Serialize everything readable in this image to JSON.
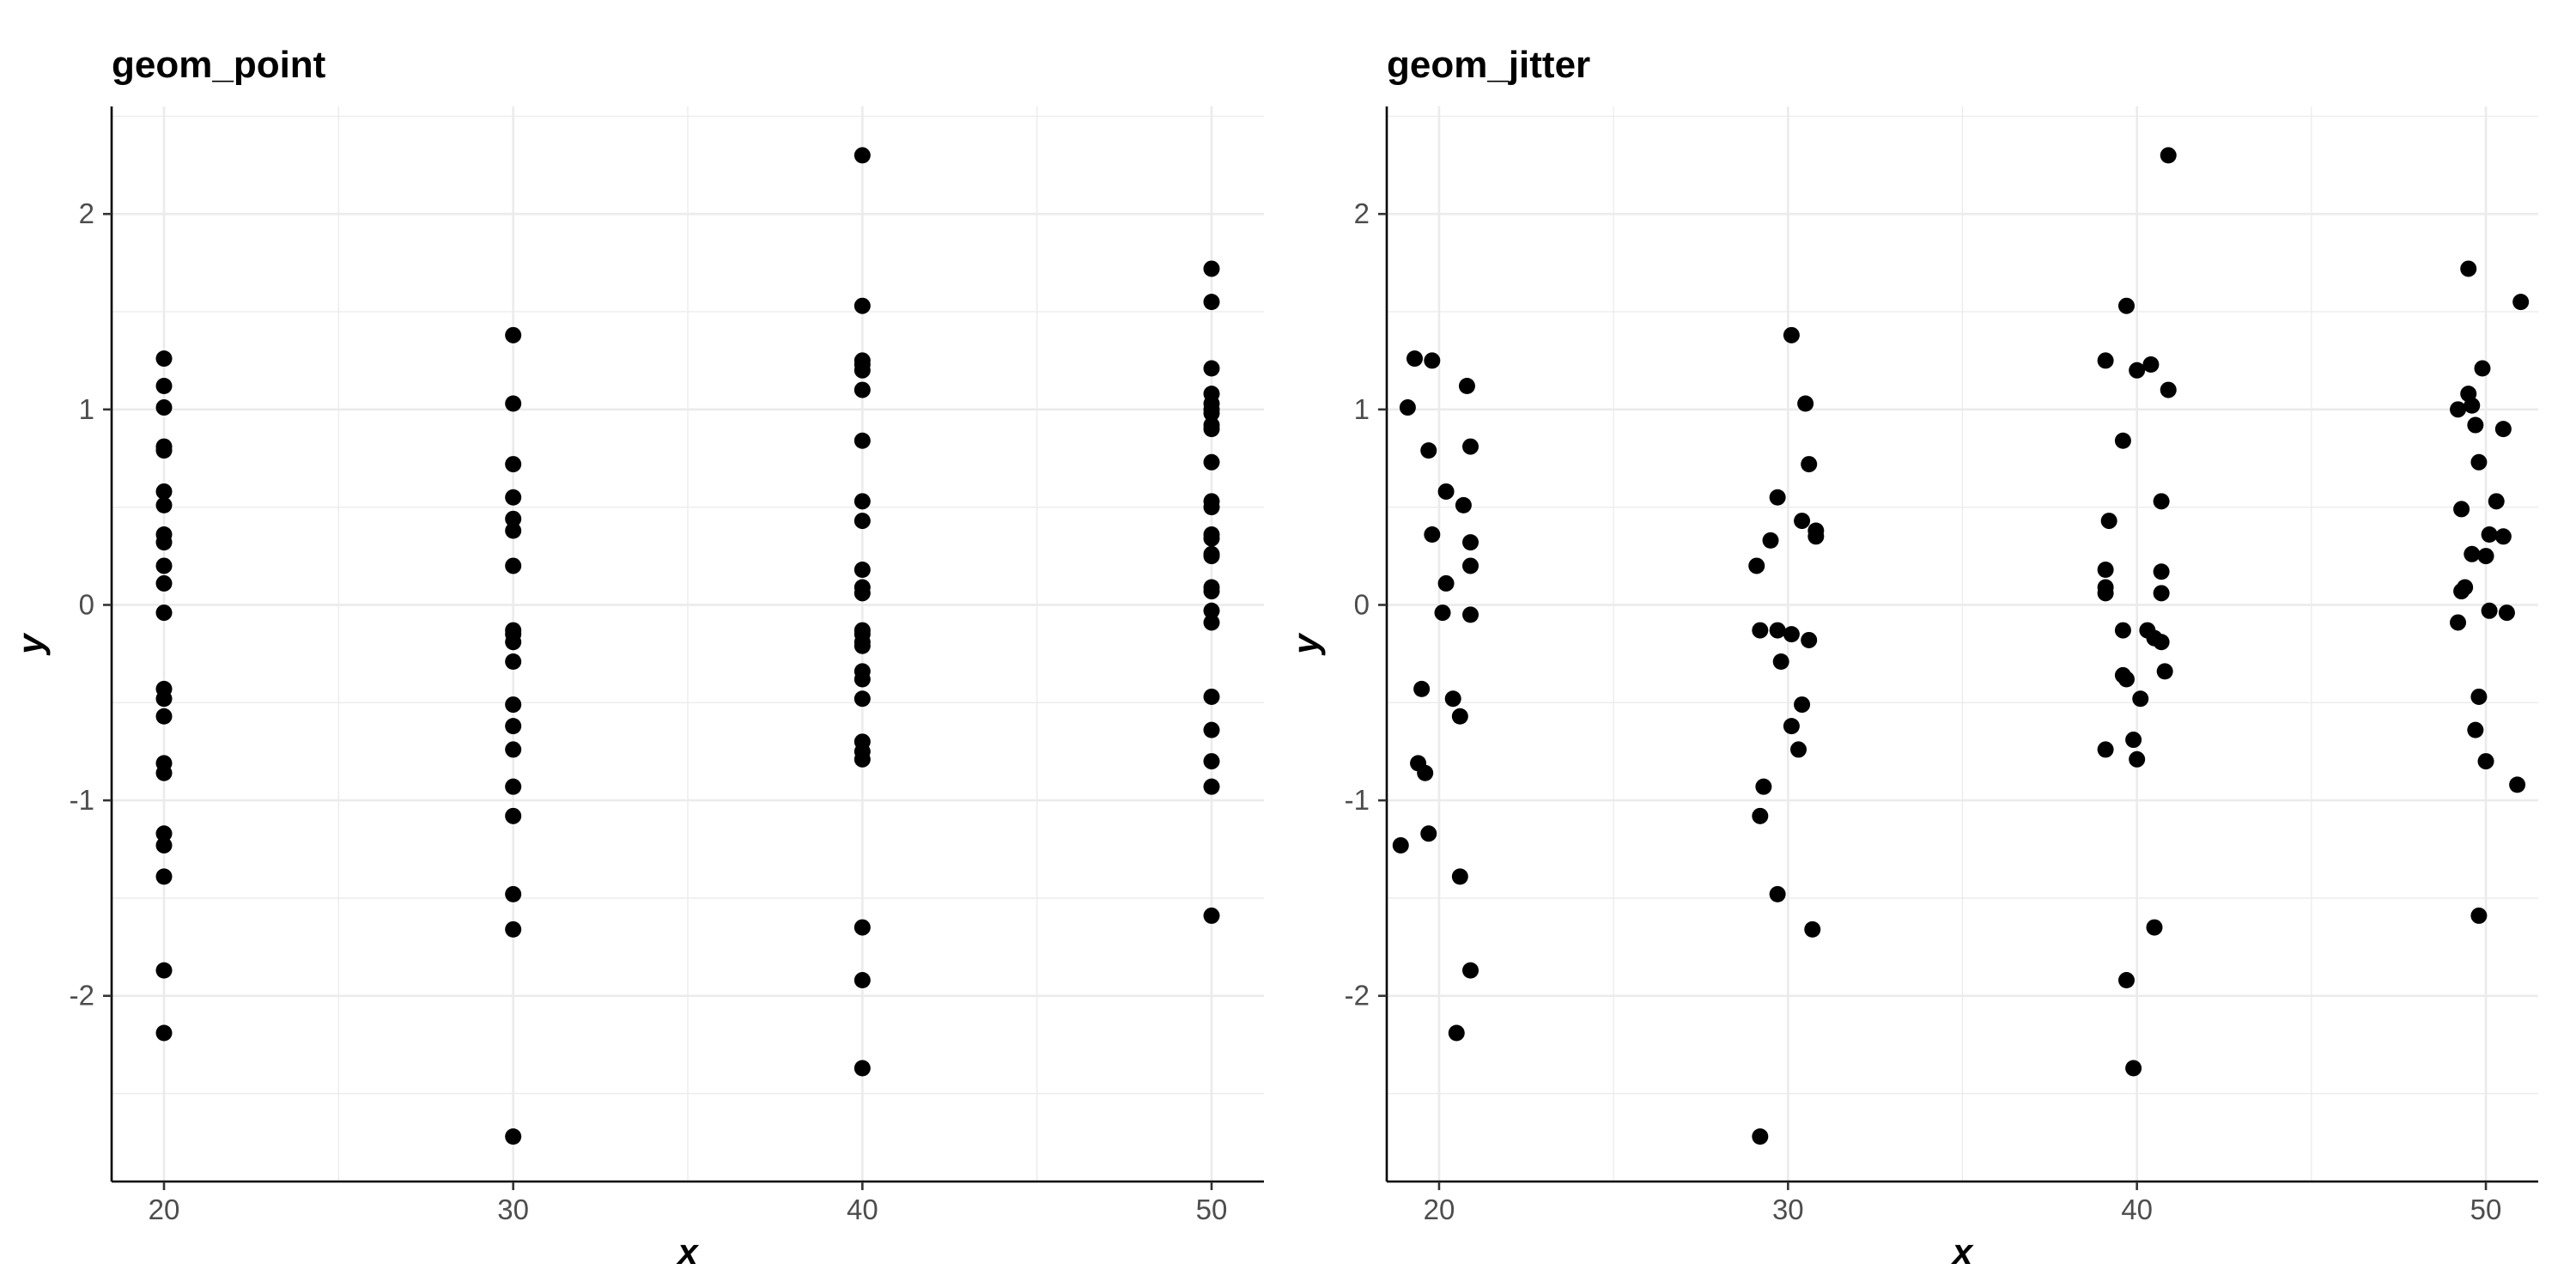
{
  "chart_data": [
    {
      "type": "scatter",
      "title": "geom_point",
      "xlabel": "x",
      "ylabel": "y",
      "xlim": [
        18.5,
        51.5
      ],
      "ylim": [
        -2.95,
        2.55
      ],
      "x_ticks": [
        "20",
        "30",
        "40",
        "50"
      ],
      "y_ticks": [
        "-2",
        "-1",
        "0",
        "1",
        "2"
      ],
      "grid": true,
      "points": [
        [
          20,
          1.26
        ],
        [
          20,
          1.12
        ],
        [
          20,
          1.01
        ],
        [
          20,
          0.81
        ],
        [
          20,
          0.79
        ],
        [
          20,
          0.58
        ],
        [
          20,
          0.51
        ],
        [
          20,
          0.36
        ],
        [
          20,
          0.32
        ],
        [
          20,
          0.2
        ],
        [
          20,
          0.11
        ],
        [
          20,
          -0.04
        ],
        [
          20,
          -0.43
        ],
        [
          20,
          -0.48
        ],
        [
          20,
          -0.57
        ],
        [
          20,
          -0.81
        ],
        [
          20,
          -0.86
        ],
        [
          20,
          -1.17
        ],
        [
          20,
          -1.23
        ],
        [
          20,
          -1.39
        ],
        [
          20,
          -1.87
        ],
        [
          20,
          -2.19
        ],
        [
          30,
          1.38
        ],
        [
          30,
          1.03
        ],
        [
          30,
          0.72
        ],
        [
          30,
          0.55
        ],
        [
          30,
          0.44
        ],
        [
          30,
          0.38
        ],
        [
          30,
          0.2
        ],
        [
          30,
          -0.13
        ],
        [
          30,
          -0.15
        ],
        [
          30,
          -0.19
        ],
        [
          30,
          -0.29
        ],
        [
          30,
          -0.51
        ],
        [
          30,
          -0.62
        ],
        [
          30,
          -0.74
        ],
        [
          30,
          -0.93
        ],
        [
          30,
          -1.08
        ],
        [
          30,
          -1.48
        ],
        [
          30,
          -1.66
        ],
        [
          30,
          -2.72
        ],
        [
          40,
          2.3
        ],
        [
          40,
          1.53
        ],
        [
          40,
          1.25
        ],
        [
          40,
          1.23
        ],
        [
          40,
          1.2
        ],
        [
          40,
          1.1
        ],
        [
          40,
          0.84
        ],
        [
          40,
          0.53
        ],
        [
          40,
          0.43
        ],
        [
          40,
          0.18
        ],
        [
          40,
          0.09
        ],
        [
          40,
          0.06
        ],
        [
          40,
          -0.13
        ],
        [
          40,
          -0.15
        ],
        [
          40,
          -0.19
        ],
        [
          40,
          -0.21
        ],
        [
          40,
          -0.34
        ],
        [
          40,
          -0.38
        ],
        [
          40,
          -0.48
        ],
        [
          40,
          -0.7
        ],
        [
          40,
          -0.75
        ],
        [
          40,
          -0.79
        ],
        [
          40,
          -1.65
        ],
        [
          40,
          -1.92
        ],
        [
          40,
          -2.37
        ],
        [
          50,
          1.72
        ],
        [
          50,
          1.55
        ],
        [
          50,
          1.21
        ],
        [
          50,
          1.08
        ],
        [
          50,
          1.03
        ],
        [
          50,
          1.0
        ],
        [
          50,
          0.98
        ],
        [
          50,
          0.92
        ],
        [
          50,
          0.9
        ],
        [
          50,
          0.73
        ],
        [
          50,
          0.53
        ],
        [
          50,
          0.5
        ],
        [
          50,
          0.36
        ],
        [
          50,
          0.34
        ],
        [
          50,
          0.26
        ],
        [
          50,
          0.25
        ],
        [
          50,
          0.09
        ],
        [
          50,
          0.07
        ],
        [
          50,
          -0.03
        ],
        [
          50,
          -0.09
        ],
        [
          50,
          -0.47
        ],
        [
          50,
          -0.64
        ],
        [
          50,
          -0.8
        ],
        [
          50,
          -0.93
        ],
        [
          50,
          -1.59
        ]
      ]
    },
    {
      "type": "scatter",
      "title": "geom_jitter",
      "xlabel": "x",
      "ylabel": "y",
      "xlim": [
        18.5,
        51.5
      ],
      "ylim": [
        -2.95,
        2.55
      ],
      "x_ticks": [
        "20",
        "30",
        "40",
        "50"
      ],
      "y_ticks": [
        "-2",
        "-1",
        "0",
        "1",
        "2"
      ],
      "grid": true,
      "points": [
        [
          19.3,
          1.26
        ],
        [
          19.8,
          1.25
        ],
        [
          20.8,
          1.12
        ],
        [
          19.1,
          1.01
        ],
        [
          20.9,
          0.81
        ],
        [
          19.7,
          0.79
        ],
        [
          20.2,
          0.58
        ],
        [
          20.7,
          0.51
        ],
        [
          19.8,
          0.36
        ],
        [
          20.9,
          0.32
        ],
        [
          20.9,
          0.2
        ],
        [
          20.2,
          0.11
        ],
        [
          20.1,
          -0.04
        ],
        [
          20.9,
          -0.05
        ],
        [
          19.5,
          -0.43
        ],
        [
          20.4,
          -0.48
        ],
        [
          20.6,
          -0.57
        ],
        [
          19.4,
          -0.81
        ],
        [
          19.6,
          -0.86
        ],
        [
          19.7,
          -1.17
        ],
        [
          18.9,
          -1.23
        ],
        [
          20.6,
          -1.39
        ],
        [
          20.9,
          -1.87
        ],
        [
          20.5,
          -2.19
        ],
        [
          30.1,
          1.38
        ],
        [
          30.5,
          1.03
        ],
        [
          30.6,
          0.72
        ],
        [
          29.7,
          0.55
        ],
        [
          30.4,
          0.43
        ],
        [
          30.8,
          0.38
        ],
        [
          29.5,
          0.33
        ],
        [
          30.8,
          0.35
        ],
        [
          29.1,
          0.2
        ],
        [
          29.2,
          -0.13
        ],
        [
          29.7,
          -0.13
        ],
        [
          30.1,
          -0.15
        ],
        [
          30.6,
          -0.18
        ],
        [
          29.8,
          -0.29
        ],
        [
          30.4,
          -0.51
        ],
        [
          30.1,
          -0.62
        ],
        [
          30.3,
          -0.74
        ],
        [
          29.3,
          -0.93
        ],
        [
          29.2,
          -1.08
        ],
        [
          29.7,
          -1.48
        ],
        [
          30.7,
          -1.66
        ],
        [
          29.2,
          -2.72
        ],
        [
          40.9,
          2.3
        ],
        [
          39.7,
          1.53
        ],
        [
          39.1,
          1.25
        ],
        [
          40.4,
          1.23
        ],
        [
          40.0,
          1.2
        ],
        [
          40.9,
          1.1
        ],
        [
          39.6,
          0.84
        ],
        [
          40.7,
          0.53
        ],
        [
          39.2,
          0.43
        ],
        [
          39.1,
          0.18
        ],
        [
          40.7,
          0.17
        ],
        [
          39.1,
          0.09
        ],
        [
          39.1,
          0.06
        ],
        [
          40.7,
          0.06
        ],
        [
          39.6,
          -0.13
        ],
        [
          40.3,
          -0.13
        ],
        [
          40.5,
          -0.17
        ],
        [
          40.7,
          -0.19
        ],
        [
          40.8,
          -0.34
        ],
        [
          39.6,
          -0.36
        ],
        [
          39.7,
          -0.38
        ],
        [
          40.1,
          -0.48
        ],
        [
          39.9,
          -0.69
        ],
        [
          39.1,
          -0.74
        ],
        [
          40.0,
          -0.79
        ],
        [
          40.5,
          -1.65
        ],
        [
          39.7,
          -1.92
        ],
        [
          39.9,
          -2.37
        ],
        [
          49.5,
          1.72
        ],
        [
          51.0,
          1.55
        ],
        [
          49.9,
          1.21
        ],
        [
          49.5,
          1.08
        ],
        [
          49.6,
          1.02
        ],
        [
          49.2,
          1.0
        ],
        [
          49.7,
          0.92
        ],
        [
          50.5,
          0.9
        ],
        [
          49.8,
          0.73
        ],
        [
          50.3,
          0.53
        ],
        [
          49.3,
          0.49
        ],
        [
          50.5,
          0.35
        ],
        [
          50.1,
          0.36
        ],
        [
          49.6,
          0.26
        ],
        [
          50.0,
          0.25
        ],
        [
          49.4,
          0.09
        ],
        [
          49.3,
          0.07
        ],
        [
          50.1,
          -0.03
        ],
        [
          50.6,
          -0.04
        ],
        [
          49.2,
          -0.09
        ],
        [
          49.8,
          -0.47
        ],
        [
          49.7,
          -0.64
        ],
        [
          50.0,
          -0.8
        ],
        [
          50.9,
          -0.92
        ],
        [
          49.8,
          -1.59
        ]
      ]
    }
  ]
}
